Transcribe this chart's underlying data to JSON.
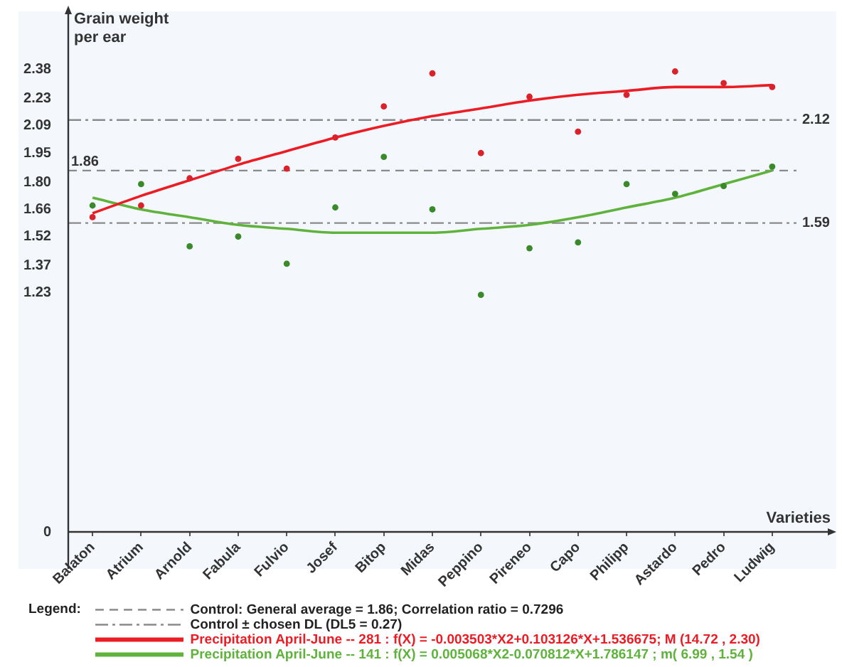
{
  "chart_data": {
    "type": "scatter",
    "categories": [
      "Balaton",
      "Atrium",
      "Arnold",
      "Fabula",
      "Fulvio",
      "Josef",
      "Bitop",
      "Midas",
      "Peppino",
      "Pireneo",
      "Capo",
      "Philipp",
      "Astardo",
      "Pedro",
      "Ludwig"
    ],
    "series": [
      {
        "color": "#d9222a",
        "marker": "circle",
        "values": [
          1.62,
          1.68,
          1.82,
          1.92,
          1.87,
          2.03,
          2.19,
          2.36,
          1.95,
          2.24,
          2.06,
          2.25,
          2.37,
          2.31,
          2.29
        ]
      },
      {
        "color": "#3a8a2c",
        "marker": "circle",
        "values": [
          1.68,
          1.79,
          1.47,
          1.52,
          1.38,
          1.67,
          1.93,
          1.66,
          1.22,
          1.46,
          1.49,
          1.79,
          1.74,
          1.78,
          1.88
        ]
      },
      {
        "type": "line",
        "name": "Precipitation April-June -- 281 : f(X) = -0.003503*X2+0.103126*X+1.536675; M (14.72 , 2.30)",
        "color": "#ec1c24",
        "values": [
          1.64,
          1.73,
          1.81,
          1.89,
          1.96,
          2.03,
          2.09,
          2.14,
          2.18,
          2.22,
          2.25,
          2.27,
          2.29,
          2.29,
          2.3
        ]
      },
      {
        "type": "line",
        "name": "Precipitation April-June -- 141 : f(X) = 0.005068*X2-0.070812*X+1.786147 ; m( 6.99 , 1.54 )",
        "color": "#5fb33c",
        "values": [
          1.72,
          1.66,
          1.62,
          1.58,
          1.56,
          1.54,
          1.54,
          1.54,
          1.56,
          1.58,
          1.62,
          1.67,
          1.72,
          1.79,
          1.86
        ]
      }
    ],
    "xlabel": "Varieties",
    "ylabel": "Grain weight per ear",
    "ylim": [
      0,
      2.65
    ],
    "yticks": [
      0,
      1.23,
      1.37,
      1.52,
      1.66,
      {
        "value": 1.8,
        "label": "1.80"
      },
      1.95,
      2.09,
      2.23,
      2.38
    ],
    "ref_lines": [
      {
        "axis": "y",
        "value": 1.86,
        "label": "1.86",
        "color": "#8a8a8a",
        "line_style": "dashed"
      },
      {
        "axis": "y",
        "value": 2.12,
        "label": "2.12",
        "color": "#8a8a8a",
        "line_style": "dashdot"
      },
      {
        "axis": "y",
        "value": 1.59,
        "label": "1.59",
        "color": "#8a8a8a",
        "line_style": "dashdot"
      }
    ],
    "annotations": [
      "Control: General average = 1.86; Correlation ratio = 0.7296",
      "Control ± chosen DL (DL5 = 0.27)"
    ],
    "legend": "bottom",
    "legend_title": "Legend:"
  }
}
